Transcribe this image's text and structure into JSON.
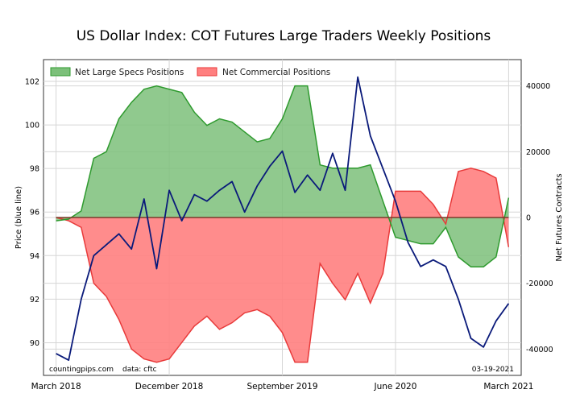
{
  "chart_data": {
    "type": "area",
    "title": "US Dollar Index: COT Futures Large Traders Weekly Positions",
    "ylabel_left": "Price (blue line)",
    "ylabel_right": "Net Futures Contracts",
    "ylim_left": [
      88.5,
      103
    ],
    "ylim_right": [
      -48000,
      48000
    ],
    "yticks_left": [
      90,
      92,
      94,
      96,
      98,
      100,
      102
    ],
    "yticks_right": [
      -40000,
      -20000,
      0,
      20000,
      40000
    ],
    "xlim": [
      "2018-02",
      "2021-04"
    ],
    "x_ticks": [
      "March 2018",
      "December 2018",
      "September 2019",
      "June 2020",
      "March 2021"
    ],
    "legend": {
      "position": "top-left",
      "entries": [
        "Net Large Specs Positions",
        "Net Commercial Positions"
      ]
    },
    "source_text": "countingpips.com",
    "data_text": "data: cftc",
    "date_text": "03-19-2021",
    "grid": true,
    "colors": {
      "specs_fill": "#7cc07a",
      "specs_line": "#2e9a2e",
      "comm_fill": "#ff7f7f",
      "comm_line": "#e83a3a",
      "price_line": "#0a1a7a"
    },
    "series": [
      {
        "name": "Net Large Specs Positions",
        "axis": "right",
        "x": [
          "2018-03",
          "2018-04",
          "2018-05",
          "2018-06",
          "2018-07",
          "2018-08",
          "2018-09",
          "2018-10",
          "2018-11",
          "2018-12",
          "2019-01",
          "2019-02",
          "2019-03",
          "2019-04",
          "2019-05",
          "2019-06",
          "2019-07",
          "2019-08",
          "2019-09",
          "2019-10",
          "2019-11",
          "2019-12",
          "2020-01",
          "2020-02",
          "2020-03",
          "2020-04",
          "2020-05",
          "2020-06",
          "2020-07",
          "2020-08",
          "2020-09",
          "2020-10",
          "2020-11",
          "2020-12",
          "2021-01",
          "2021-02",
          "2021-03"
        ],
        "values": [
          -1000,
          -500,
          2000,
          18000,
          20000,
          30000,
          35000,
          39000,
          40000,
          39000,
          38000,
          32000,
          28000,
          30000,
          29000,
          26000,
          23000,
          24000,
          30000,
          40000,
          40000,
          16000,
          15000,
          15000,
          15000,
          16000,
          5000,
          -6000,
          -7000,
          -8000,
          -8000,
          -3000,
          -12000,
          -15000,
          -15000,
          -12000,
          6000
        ]
      },
      {
        "name": "Net Commercial Positions",
        "axis": "right",
        "x": [
          "2018-03",
          "2018-04",
          "2018-05",
          "2018-06",
          "2018-07",
          "2018-08",
          "2018-09",
          "2018-10",
          "2018-11",
          "2018-12",
          "2019-01",
          "2019-02",
          "2019-03",
          "2019-04",
          "2019-05",
          "2019-06",
          "2019-07",
          "2019-08",
          "2019-09",
          "2019-10",
          "2019-11",
          "2019-12",
          "2020-01",
          "2020-02",
          "2020-03",
          "2020-04",
          "2020-05",
          "2020-06",
          "2020-07",
          "2020-08",
          "2020-09",
          "2020-10",
          "2020-11",
          "2020-12",
          "2021-01",
          "2021-02",
          "2021-03"
        ],
        "values": [
          0,
          -1000,
          -3000,
          -20000,
          -24000,
          -31000,
          -40000,
          -43000,
          -44000,
          -43000,
          -38000,
          -33000,
          -30000,
          -34000,
          -32000,
          -29000,
          -28000,
          -30000,
          -35000,
          -44000,
          -44000,
          -14000,
          -20000,
          -25000,
          -17000,
          -26000,
          -17000,
          8000,
          8000,
          8000,
          4000,
          -2000,
          14000,
          15000,
          14000,
          12000,
          -9000
        ]
      },
      {
        "name": "Price (blue line)",
        "axis": "left",
        "x": [
          "2018-03",
          "2018-04",
          "2018-05",
          "2018-06",
          "2018-07",
          "2018-08",
          "2018-09",
          "2018-10",
          "2018-11",
          "2018-12",
          "2019-01",
          "2019-02",
          "2019-03",
          "2019-04",
          "2019-05",
          "2019-06",
          "2019-07",
          "2019-08",
          "2019-09",
          "2019-10",
          "2019-11",
          "2019-12",
          "2020-01",
          "2020-02",
          "2020-03",
          "2020-04",
          "2020-05",
          "2020-06",
          "2020-07",
          "2020-08",
          "2020-09",
          "2020-10",
          "2020-11",
          "2020-12",
          "2021-01",
          "2021-02",
          "2021-03"
        ],
        "values": [
          89.5,
          89.2,
          92.0,
          94.0,
          94.5,
          95.0,
          94.3,
          96.6,
          93.4,
          97.0,
          95.6,
          96.8,
          96.5,
          97.0,
          97.4,
          96.0,
          97.2,
          98.1,
          98.8,
          96.9,
          97.7,
          97.0,
          98.7,
          97.0,
          102.2,
          99.5,
          98.0,
          96.5,
          94.6,
          93.5,
          93.8,
          93.5,
          92.0,
          90.2,
          89.8,
          91.0,
          91.8
        ]
      }
    ]
  }
}
